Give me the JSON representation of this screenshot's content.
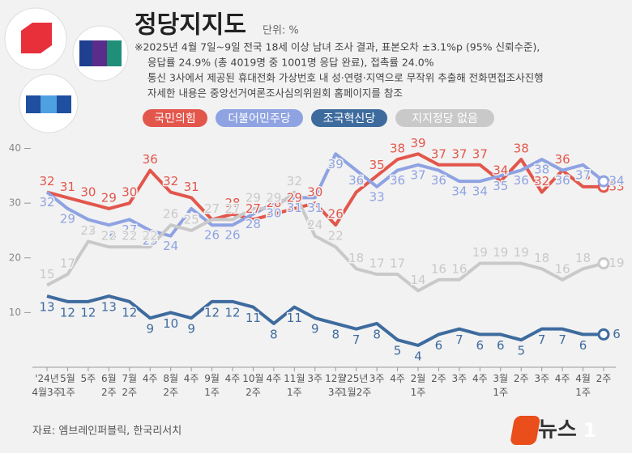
{
  "chart_data": {
    "type": "line",
    "title": "정당지지도",
    "unit": "단위: %",
    "notes": [
      "※2025년 4월 7일~9일 전국 18세 이상 남녀 조사 결과, 표본오차 ±3.1%p (95% 신뢰수준),",
      "응답률 24.9% (총 4019명 중 1001명 응답 완료), 접촉률 24.0%",
      "통신 3사에서 제공된 휴대전화 가상번호 내 성·연령·지역으로 무작위 추출해 전화면접조사진행",
      "자세한 내용은 중앙선거여론조사심의위원회 홈페이지를 참조"
    ],
    "categories": [
      "'24년 4월3주",
      "5월 1주",
      "5주",
      "6월 2주",
      "7월 2주",
      "4주",
      "8월 2주",
      "4주",
      "9월 1주",
      "4주",
      "10월 2주",
      "4주",
      "11월 1주",
      "3주",
      "12월 3주",
      "'25년 1월2주",
      "3주",
      "4주",
      "2월 1주",
      "2주",
      "3주",
      "4주",
      "3월 1주",
      "2주",
      "3주",
      "4주",
      "4월 1주",
      "2주"
    ],
    "series": [
      {
        "name": "국민의힘",
        "color": "#e2564c",
        "values": [
          32,
          31,
          30,
          29,
          30,
          36,
          32,
          31,
          27,
          28,
          27,
          28,
          29,
          30,
          26,
          32,
          35,
          38,
          39,
          37,
          37,
          37,
          34,
          38,
          32,
          36,
          33,
          33
        ]
      },
      {
        "name": "더불어민주당",
        "color": "#8fa3e2",
        "values": [
          32,
          29,
          27,
          26,
          27,
          25,
          24,
          29,
          26,
          26,
          28,
          30,
          31,
          31,
          39,
          36,
          33,
          36,
          37,
          36,
          34,
          34,
          35,
          36,
          38,
          36,
          37,
          34
        ]
      },
      {
        "name": "조국혁신당",
        "color": "#3e6b9e",
        "values": [
          13,
          12,
          12,
          13,
          12,
          9,
          10,
          9,
          12,
          12,
          11,
          8,
          11,
          9,
          8,
          7,
          8,
          5,
          4,
          6,
          7,
          6,
          6,
          5,
          7,
          7,
          6,
          6
        ]
      },
      {
        "name": "지지정당 없음",
        "color": "#c9c9c9",
        "values": [
          15,
          17,
          23,
          22,
          22,
          22,
          26,
          25,
          27,
          27,
          29,
          29,
          32,
          24,
          22,
          18,
          17,
          17,
          14,
          16,
          16,
          19,
          19,
          19,
          18,
          16,
          18,
          19
        ]
      }
    ],
    "ylim": [
      0,
      42
    ],
    "yticks": [
      10,
      20,
      30,
      40
    ],
    "grid": false,
    "source": "자료: 엠브레인퍼블릭, 한국리서치",
    "logo": {
      "text": "뉴스",
      "mark": "1"
    }
  }
}
